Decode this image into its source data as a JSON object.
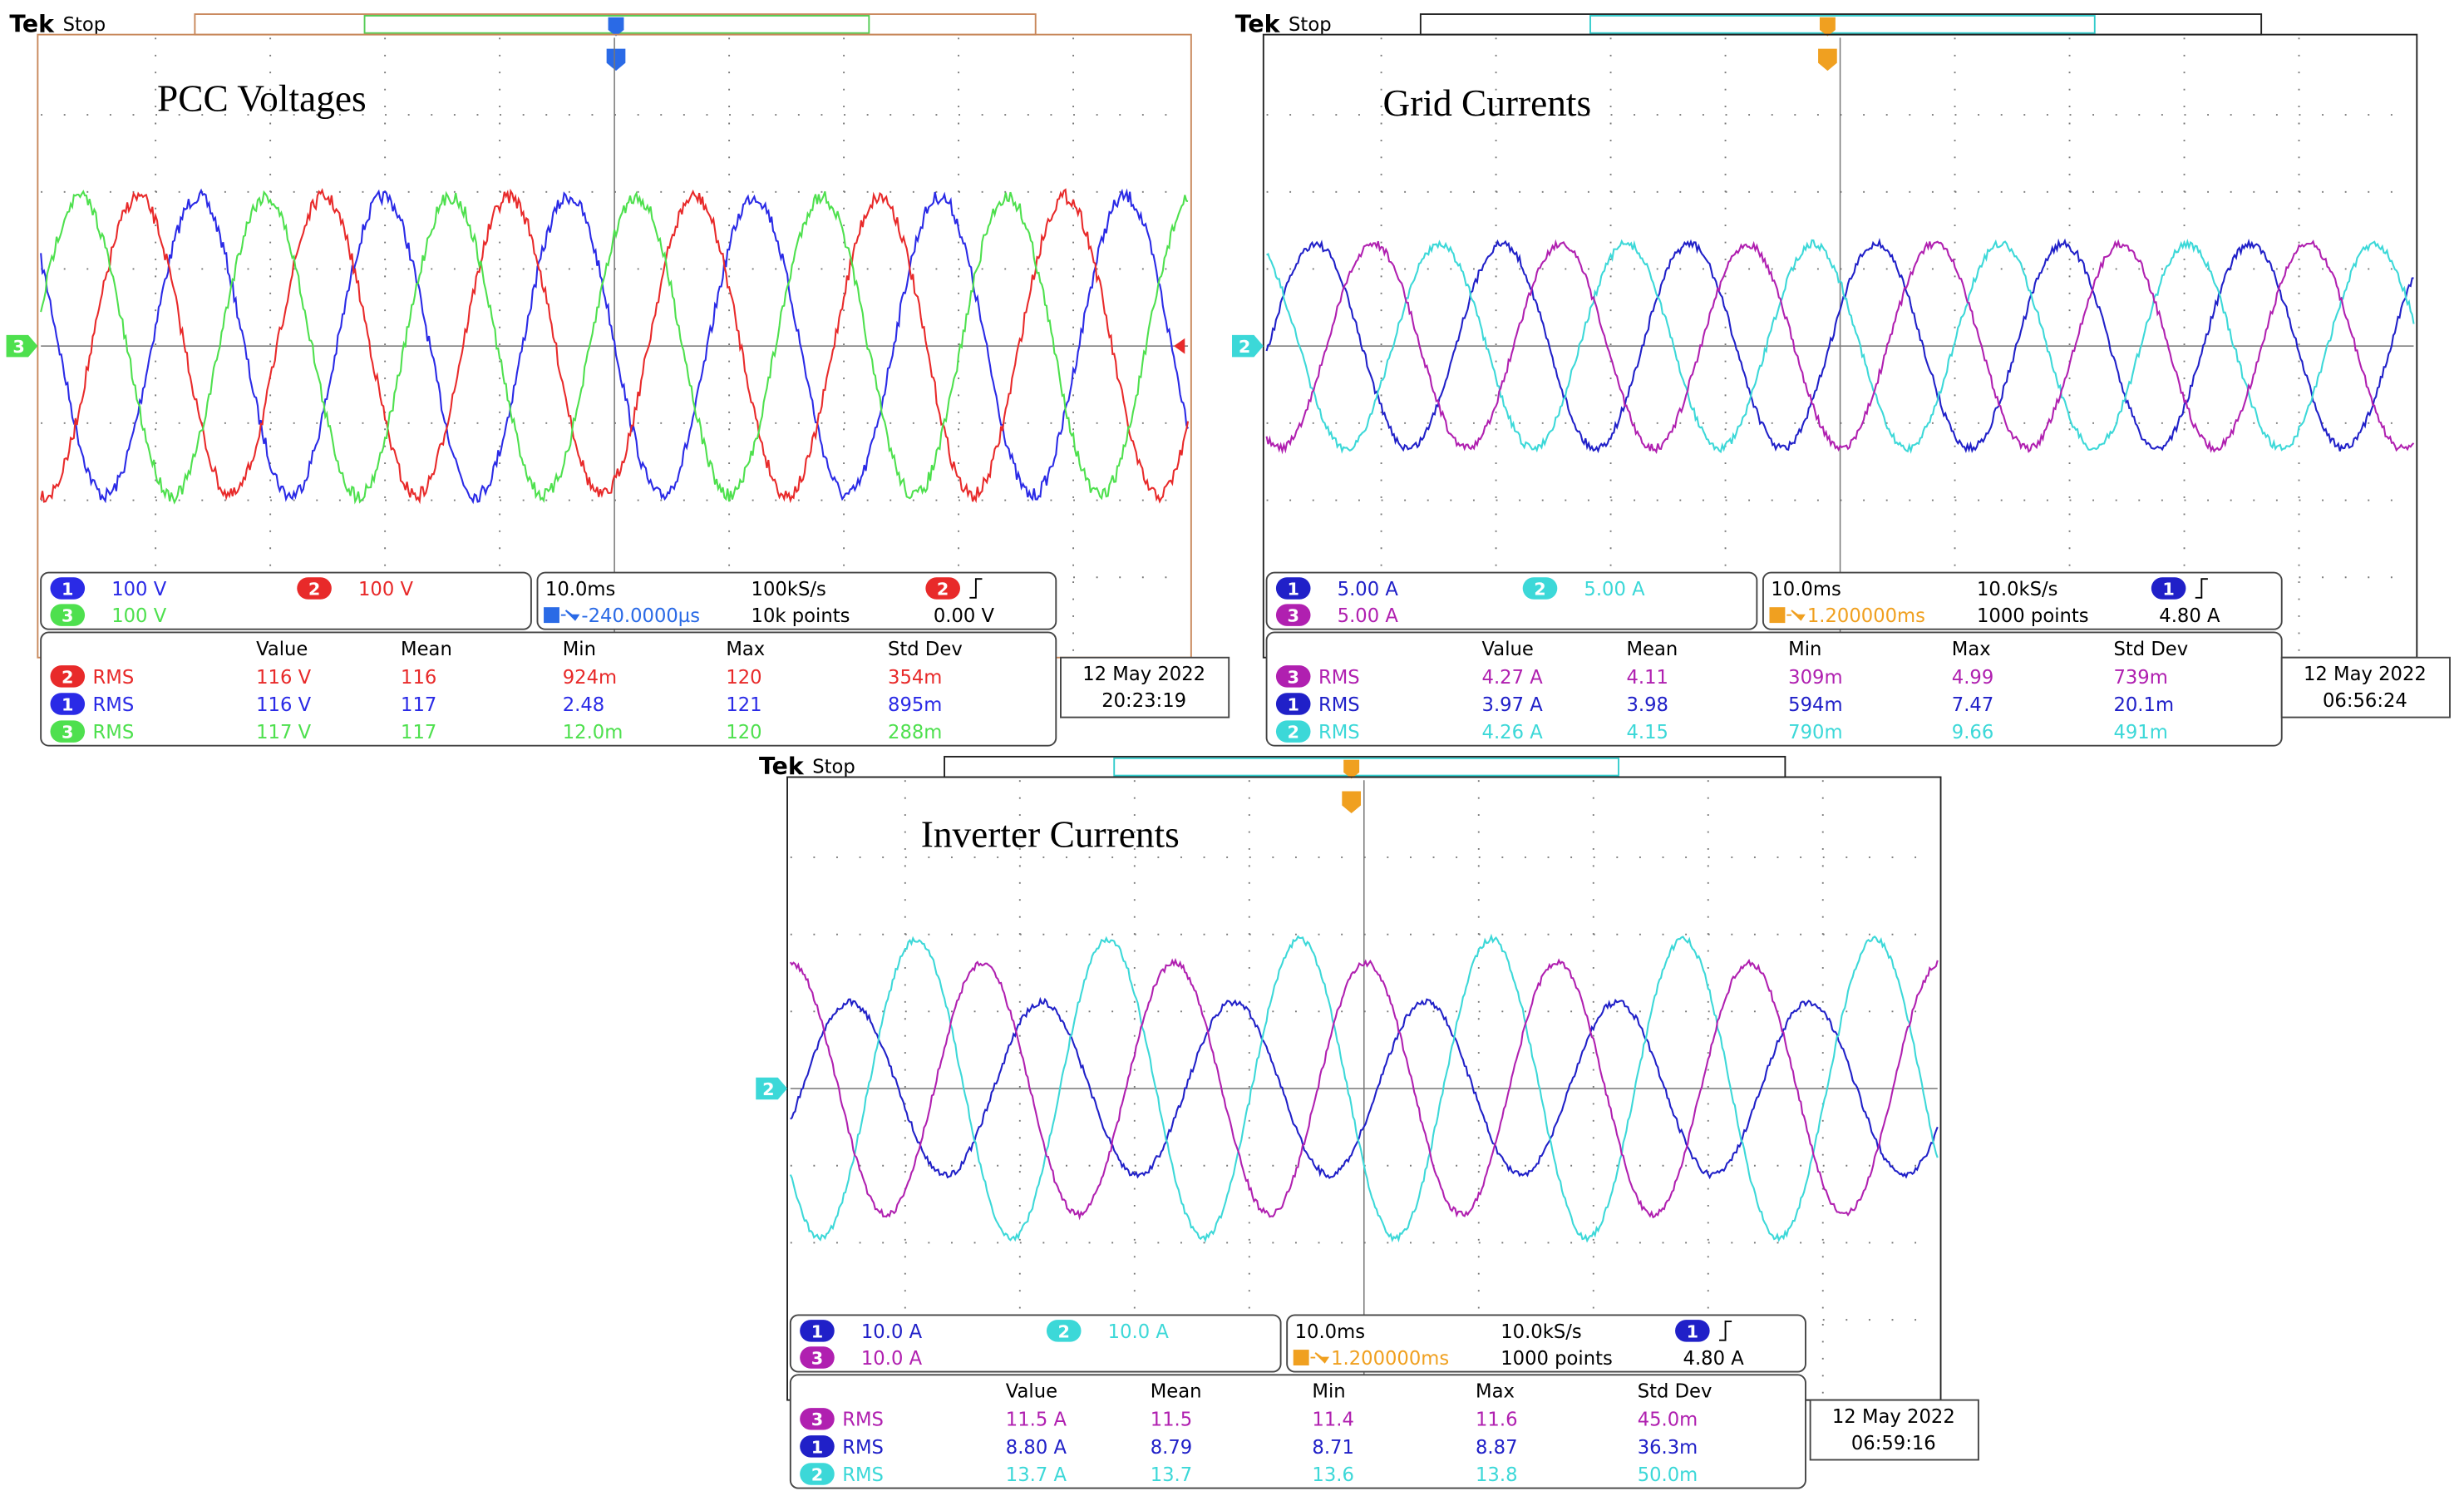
{
  "scopes": [
    {
      "brand": "Tek",
      "status": "Stop",
      "title": "PCC Voltages",
      "channel_marker": "3",
      "trigger_color": "#2a6ae6",
      "channels": [
        {
          "badge": "1",
          "scale": "100 V",
          "color": "#2a2ae6"
        },
        {
          "badge": "2",
          "scale": "100 V",
          "color": "#e82a2a"
        },
        {
          "badge": "3",
          "scale": "100 V",
          "color": "#4ee04e"
        }
      ],
      "timebase": {
        "time_div": "10.0ms",
        "sample_rate": "100kS/s",
        "trigger_position": "-240.0000µs",
        "record_length": "10k points",
        "trigger_channel": "2",
        "trigger_level": "0.00 V"
      },
      "measurements": {
        "headers": [
          "Value",
          "Mean",
          "Min",
          "Max",
          "Std Dev"
        ],
        "rows": [
          {
            "badge": "2",
            "label": "RMS",
            "cells": [
              "116 V",
              "116",
              "924m",
              "120",
              "354m"
            ]
          },
          {
            "badge": "1",
            "label": "RMS",
            "cells": [
              "116 V",
              "117",
              "2.48",
              "121",
              "895m"
            ]
          },
          {
            "badge": "3",
            "label": "RMS",
            "cells": [
              "117 V",
              "117",
              "12.0m",
              "120",
              "288m"
            ]
          }
        ]
      },
      "date": "12 May 2022",
      "time": "20:23:19"
    },
    {
      "brand": "Tek",
      "status": "Stop",
      "title": "Grid Currents",
      "channel_marker": "2",
      "trigger_color": "#f0a020",
      "channels": [
        {
          "badge": "1",
          "scale": "5.00 A",
          "color": "#2020c8"
        },
        {
          "badge": "2",
          "scale": "5.00 A",
          "color": "#3cd8d8"
        },
        {
          "badge": "3",
          "scale": "5.00 A",
          "color": "#b020b0"
        }
      ],
      "timebase": {
        "time_div": "10.0ms",
        "sample_rate": "10.0kS/s",
        "trigger_position": "1.200000ms",
        "record_length": "1000 points",
        "trigger_channel": "1",
        "trigger_level": "4.80 A"
      },
      "measurements": {
        "headers": [
          "Value",
          "Mean",
          "Min",
          "Max",
          "Std Dev"
        ],
        "rows": [
          {
            "badge": "3",
            "label": "RMS",
            "cells": [
              "4.27 A",
              "4.11",
              "309m",
              "4.99",
              "739m"
            ]
          },
          {
            "badge": "1",
            "label": "RMS",
            "cells": [
              "3.97 A",
              "3.98",
              "594m",
              "7.47",
              "20.1m"
            ]
          },
          {
            "badge": "2",
            "label": "RMS",
            "cells": [
              "4.26 A",
              "4.15",
              "790m",
              "9.66",
              "491m"
            ]
          }
        ]
      },
      "date": "12 May 2022",
      "time": "06:56:24"
    },
    {
      "brand": "Tek",
      "status": "Stop",
      "title": "Inverter Currents",
      "channel_marker": "2",
      "trigger_color": "#f0a020",
      "channels": [
        {
          "badge": "1",
          "scale": "10.0 A",
          "color": "#2020c8"
        },
        {
          "badge": "2",
          "scale": "10.0 A",
          "color": "#3cd8d8"
        },
        {
          "badge": "3",
          "scale": "10.0 A",
          "color": "#b020b0"
        }
      ],
      "timebase": {
        "time_div": "10.0ms",
        "sample_rate": "10.0kS/s",
        "trigger_position": "1.200000ms",
        "record_length": "1000 points",
        "trigger_channel": "1",
        "trigger_level": "4.80 A"
      },
      "measurements": {
        "headers": [
          "Value",
          "Mean",
          "Min",
          "Max",
          "Std Dev"
        ],
        "rows": [
          {
            "badge": "3",
            "label": "RMS",
            "cells": [
              "11.5 A",
              "11.5",
              "11.4",
              "11.6",
              "45.0m"
            ]
          },
          {
            "badge": "1",
            "label": "RMS",
            "cells": [
              "8.80 A",
              "8.79",
              "8.71",
              "8.87",
              "36.3m"
            ]
          },
          {
            "badge": "2",
            "label": "RMS",
            "cells": [
              "13.7 A",
              "13.7",
              "13.6",
              "13.8",
              "50.0m"
            ]
          }
        ]
      },
      "date": "12 May 2022",
      "time": "06:59:16"
    }
  ]
}
